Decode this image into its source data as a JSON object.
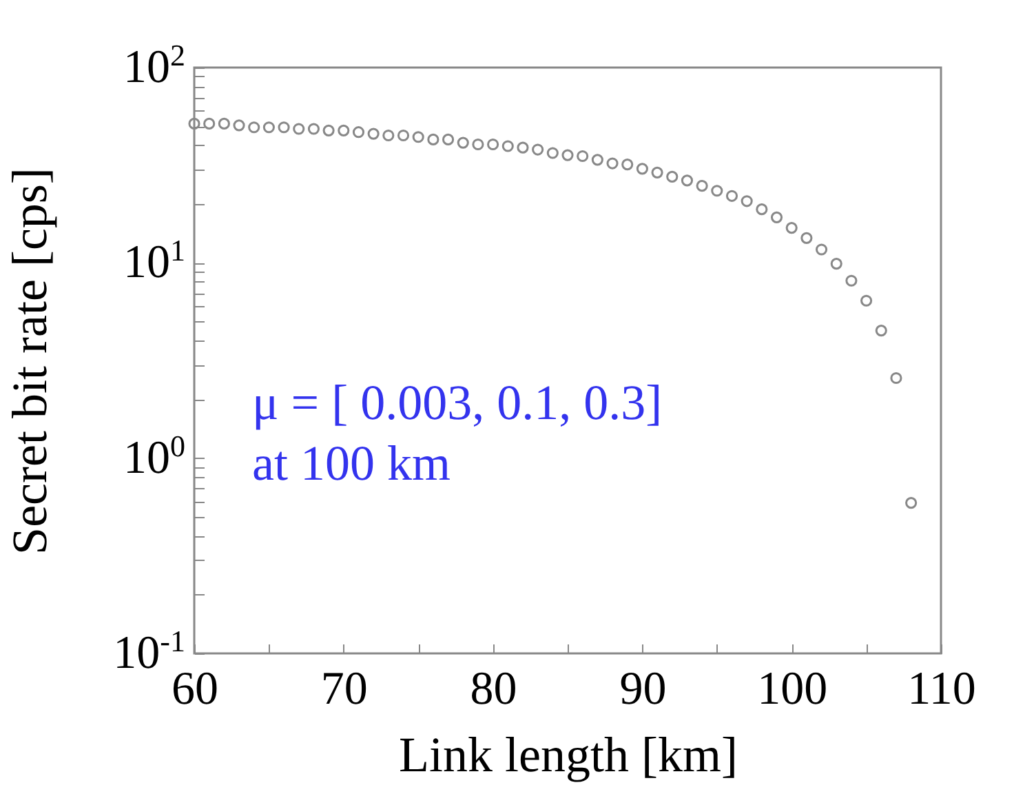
{
  "chart_data": {
    "type": "scatter",
    "xlabel": "Link length [km]",
    "ylabel": "Secret bit rate [cps]",
    "annotations": [
      "μ = [ 0.003, 0.1, 0.3]",
      "at 100 km"
    ],
    "x": [
      60,
      61,
      62,
      63,
      64,
      65,
      66,
      67,
      68,
      69,
      70,
      71,
      72,
      73,
      74,
      75,
      76,
      77,
      78,
      79,
      80,
      81,
      82,
      83,
      84,
      85,
      86,
      87,
      88,
      89,
      90,
      91,
      92,
      93,
      94,
      95,
      96,
      97,
      98,
      99,
      100,
      101,
      102,
      103,
      104,
      105,
      106,
      107,
      108
    ],
    "series": [
      {
        "color": "#888888",
        "values": [
          51.6,
          51.6,
          51.6,
          50.6,
          49.4,
          49.4,
          49.4,
          48.5,
          48.5,
          47.6,
          47.6,
          46.7,
          45.8,
          44.9,
          44.9,
          44.1,
          42.8,
          42.8,
          41.2,
          40.4,
          40.4,
          39.6,
          38.9,
          38.0,
          36.5,
          35.6,
          35.2,
          33.7,
          32.3,
          31.9,
          30.3,
          29.0,
          27.6,
          26.4,
          24.8,
          23.4,
          22.0,
          20.7,
          18.8,
          17.1,
          15.1,
          13.4,
          11.7,
          9.9,
          8.1,
          6.4,
          4.5,
          2.57,
          0.59
        ]
      }
    ],
    "xlim": [
      60,
      110
    ],
    "xticks": [
      60,
      {
        "value": 65,
        "label": null
      },
      70,
      {
        "value": 75,
        "label": null
      },
      80,
      {
        "value": 85,
        "label": null
      },
      90,
      {
        "value": 95,
        "label": null
      },
      100,
      {
        "value": 105,
        "label": null
      },
      110
    ],
    "log": "y",
    "ylim": [
      0.1,
      100
    ],
    "yticks": [
      {
        "value": 0.1,
        "label": "10$^{-1}$"
      },
      {
        "value": 0.2,
        "label": null
      },
      {
        "value": 0.3,
        "label": null
      },
      {
        "value": 0.4,
        "label": null
      },
      {
        "value": 0.5,
        "label": null
      },
      {
        "value": 0.6,
        "label": null
      },
      {
        "value": 0.7,
        "label": null
      },
      {
        "value": 0.8,
        "label": null
      },
      {
        "value": 0.9,
        "label": null
      },
      {
        "value": 1,
        "label": "10$^{0}$"
      },
      {
        "value": 2,
        "label": null
      },
      {
        "value": 3,
        "label": null
      },
      {
        "value": 4,
        "label": null
      },
      {
        "value": 5,
        "label": null
      },
      {
        "value": 6,
        "label": null
      },
      {
        "value": 7,
        "label": null
      },
      {
        "value": 8,
        "label": null
      },
      {
        "value": 9,
        "label": null
      },
      {
        "value": 10,
        "label": "10$^{1}$"
      },
      {
        "value": 20,
        "label": null
      },
      {
        "value": 30,
        "label": null
      },
      {
        "value": 40,
        "label": null
      },
      {
        "value": 50,
        "label": null
      },
      {
        "value": 60,
        "label": null
      },
      {
        "value": 70,
        "label": null
      },
      {
        "value": 80,
        "label": null
      },
      {
        "value": 90,
        "label": null
      },
      {
        "value": 100,
        "label": "10$^{2}$"
      }
    ],
    "grid": false,
    "marker": "circle",
    "legend": false
  }
}
